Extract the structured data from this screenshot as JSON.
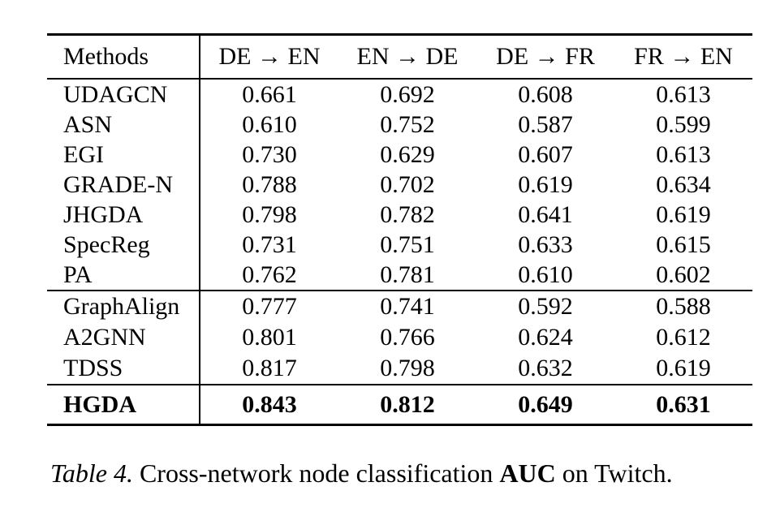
{
  "table": {
    "columns": [
      "Methods",
      "DE → EN",
      "EN → DE",
      "DE → FR",
      "FR → EN"
    ],
    "groups": [
      {
        "rows": [
          {
            "method": "UDAGCN",
            "values": [
              "0.661",
              "0.692",
              "0.608",
              "0.613"
            ]
          },
          {
            "method": "ASN",
            "values": [
              "0.610",
              "0.752",
              "0.587",
              "0.599"
            ]
          },
          {
            "method": "EGI",
            "values": [
              "0.730",
              "0.629",
              "0.607",
              "0.613"
            ]
          },
          {
            "method": "GRADE-N",
            "values": [
              "0.788",
              "0.702",
              "0.619",
              "0.634"
            ]
          },
          {
            "method": "JHGDA",
            "values": [
              "0.798",
              "0.782",
              "0.641",
              "0.619"
            ]
          },
          {
            "method": "SpecReg",
            "values": [
              "0.731",
              "0.751",
              "0.633",
              "0.615"
            ]
          },
          {
            "method": "PA",
            "values": [
              "0.762",
              "0.781",
              "0.610",
              "0.602"
            ]
          }
        ]
      },
      {
        "rows": [
          {
            "method": "GraphAlign",
            "values": [
              "0.777",
              "0.741",
              "0.592",
              "0.588"
            ]
          },
          {
            "method": "A2GNN",
            "values": [
              "0.801",
              "0.766",
              "0.624",
              "0.612"
            ]
          },
          {
            "method": "TDSS",
            "values": [
              "0.817",
              "0.798",
              "0.632",
              "0.619"
            ]
          }
        ]
      },
      {
        "rows": [
          {
            "method": "HGDA",
            "values": [
              "0.843",
              "0.812",
              "0.649",
              "0.631"
            ]
          }
        ]
      }
    ]
  },
  "caption": {
    "label": "Table 4.",
    "before": "Cross-network node classification",
    "bold": "AUC",
    "after": "on Twitch."
  }
}
